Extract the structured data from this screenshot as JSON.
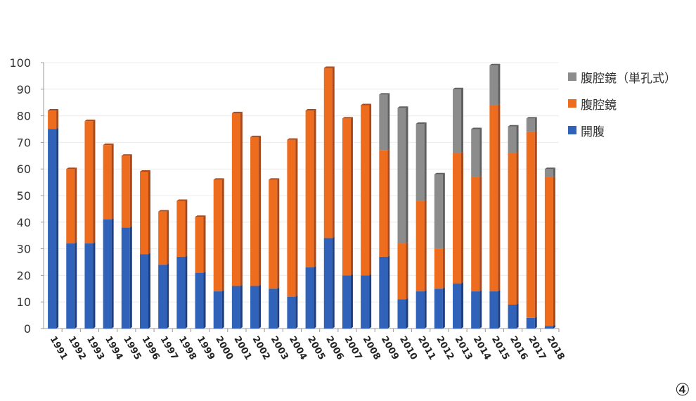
{
  "chart_data": {
    "type": "bar",
    "stacked": true,
    "title": "",
    "xlabel": "",
    "ylabel": "",
    "ylim": [
      0,
      100
    ],
    "yticks": [
      0,
      10,
      20,
      30,
      40,
      50,
      60,
      70,
      80,
      90,
      100
    ],
    "grid": true,
    "legend_position": "right",
    "categories": [
      "1991",
      "1992",
      "1993",
      "1994",
      "1995",
      "1996",
      "1997",
      "1998",
      "1999",
      "2000",
      "2001",
      "2002",
      "2003",
      "2004",
      "2005",
      "2006",
      "2007",
      "2008",
      "2009",
      "2010",
      "2011",
      "2012",
      "2013",
      "2014",
      "2015",
      "2016",
      "2017",
      "2018"
    ],
    "series": [
      {
        "name": "開腹",
        "color": "#2f62b8",
        "values": [
          75,
          32,
          32,
          41,
          38,
          28,
          24,
          27,
          21,
          14,
          16,
          16,
          15,
          12,
          23,
          34,
          20,
          20,
          27,
          11,
          14,
          15,
          17,
          14,
          14,
          9,
          4,
          1
        ]
      },
      {
        "name": "腹腔鏡",
        "color": "#ee6c1e",
        "values": [
          7,
          28,
          46,
          28,
          27,
          31,
          20,
          21,
          21,
          42,
          65,
          56,
          41,
          59,
          59,
          64,
          59,
          64,
          40,
          21,
          34,
          15,
          49,
          43,
          70,
          57,
          70,
          56
        ]
      },
      {
        "name": "腹腔鏡（単孔式）",
        "color": "#8c8c8c",
        "values": [
          0,
          0,
          0,
          0,
          0,
          0,
          0,
          0,
          0,
          0,
          0,
          0,
          0,
          0,
          0,
          0,
          0,
          0,
          21,
          51,
          29,
          28,
          24,
          18,
          15,
          10,
          5,
          3
        ]
      }
    ],
    "legend_order": [
      "腹腔鏡（単孔式）",
      "腹腔鏡",
      "開腹"
    ]
  },
  "corner_mark": "④"
}
